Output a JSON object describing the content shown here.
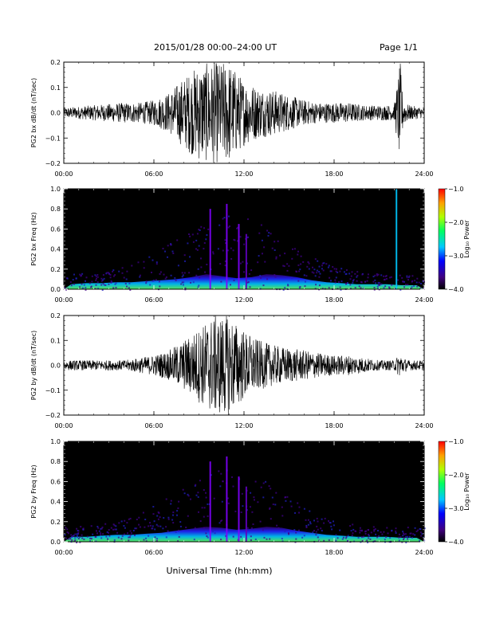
{
  "header": {
    "title": "2015/01/28  00:00–24:00 UT",
    "page": "Page 1/1"
  },
  "xlabel": "Universal Time (hh:mm)",
  "chart_data": [
    {
      "type": "line",
      "ylabel": "PG2 bx dB/dt (nT/sec)",
      "ylim": [
        -0.2,
        0.2
      ],
      "yticks": [
        "−0.2",
        "−0.1",
        "0.0",
        "0.1",
        "0.2"
      ],
      "xticks": [
        "00:00",
        "06:00",
        "12:00",
        "18:00",
        "24:00"
      ],
      "xlim_hours": [
        0,
        24
      ],
      "series": [
        {
          "x": [
            0,
            2,
            4,
            5,
            6,
            7,
            8,
            9,
            10,
            11,
            12,
            13,
            14,
            15,
            16,
            17,
            18,
            19,
            20,
            21,
            22,
            22.4,
            22.6,
            23,
            24
          ],
          "y": [
            0.02,
            0.03,
            0.04,
            0.04,
            0.05,
            0.08,
            0.14,
            0.19,
            0.2,
            0.2,
            0.13,
            0.1,
            0.09,
            0.07,
            0.05,
            0.04,
            0.04,
            0.04,
            0.03,
            0.03,
            0.03,
            0.2,
            0.05,
            0.03,
            0.02
          ]
        }
      ]
    },
    {
      "type": "heatmap",
      "ylabel": "PG2 bx Freq (Hz)",
      "ylim": [
        0,
        1.0
      ],
      "yticks": [
        "0.0",
        "0.2",
        "0.4",
        "0.6",
        "0.8",
        "1.0"
      ],
      "xticks": [
        "00:00",
        "06:00",
        "12:00",
        "18:00",
        "24:00"
      ],
      "colorbar": {
        "label": "Log₁₀ Power",
        "ticks": [
          "−1.0",
          "−2.0",
          "−3.0",
          "−4.0"
        ],
        "range": [
          -4.0,
          -1.0
        ]
      },
      "band_top_hz": [
        0.05,
        0.06,
        0.06,
        0.07,
        0.07,
        0.08,
        0.09,
        0.1,
        0.12,
        0.15,
        0.13,
        0.11,
        0.12,
        0.15,
        0.14,
        0.12,
        0.09,
        0.07,
        0.06,
        0.05,
        0.05,
        0.05,
        0.04,
        0.04
      ],
      "spikes": [
        {
          "t": 22.1,
          "color": "#00c8ff",
          "top": 1.0
        },
        {
          "t": 10.8,
          "color": "#8000ff",
          "top": 0.85
        },
        {
          "t": 9.7,
          "color": "#8000ff",
          "top": 0.8
        },
        {
          "t": 11.6,
          "color": "#8000ff",
          "top": 0.65
        },
        {
          "t": 12.1,
          "color": "#6000c0",
          "top": 0.55
        }
      ]
    },
    {
      "type": "line",
      "ylabel": "PG2 by dB/dt (nT/sec)",
      "ylim": [
        -0.2,
        0.2
      ],
      "yticks": [
        "−0.2",
        "−0.1",
        "0.0",
        "0.1",
        "0.2"
      ],
      "xticks": [
        "00:00",
        "06:00",
        "12:00",
        "18:00",
        "24:00"
      ],
      "xlim_hours": [
        0,
        24
      ],
      "series": [
        {
          "x": [
            0,
            2,
            4,
            5,
            6,
            7,
            8,
            9,
            10,
            11,
            12,
            13,
            14,
            15,
            16,
            17,
            18,
            19,
            20,
            21,
            22,
            22.4,
            22.6,
            23,
            24
          ],
          "y": [
            0.02,
            0.02,
            0.02,
            0.03,
            0.04,
            0.06,
            0.1,
            0.15,
            0.2,
            0.2,
            0.14,
            0.1,
            0.08,
            0.07,
            0.06,
            0.05,
            0.04,
            0.04,
            0.03,
            0.02,
            0.02,
            0.05,
            0.03,
            0.02,
            0.02
          ]
        }
      ]
    },
    {
      "type": "heatmap",
      "ylabel": "PG2 by Freq (Hz)",
      "ylim": [
        0,
        1.0
      ],
      "yticks": [
        "0.0",
        "0.2",
        "0.4",
        "0.6",
        "0.8",
        "1.0"
      ],
      "xticks": [
        "00:00",
        "06:00",
        "12:00",
        "18:00",
        "24:00"
      ],
      "colorbar": {
        "label": "Log₁₀ Power",
        "ticks": [
          "−1.0",
          "−2.0",
          "−3.0",
          "−4.0"
        ],
        "range": [
          -4.0,
          -1.0
        ]
      },
      "band_top_hz": [
        0.05,
        0.05,
        0.06,
        0.07,
        0.07,
        0.08,
        0.09,
        0.11,
        0.13,
        0.15,
        0.14,
        0.12,
        0.13,
        0.15,
        0.14,
        0.11,
        0.09,
        0.07,
        0.06,
        0.05,
        0.05,
        0.05,
        0.04,
        0.04
      ],
      "spikes": [
        {
          "t": 10.8,
          "color": "#8000ff",
          "top": 0.85
        },
        {
          "t": 9.7,
          "color": "#8000ff",
          "top": 0.8
        },
        {
          "t": 11.6,
          "color": "#8000ff",
          "top": 0.65
        },
        {
          "t": 12.1,
          "color": "#6000c0",
          "top": 0.55
        }
      ]
    }
  ]
}
